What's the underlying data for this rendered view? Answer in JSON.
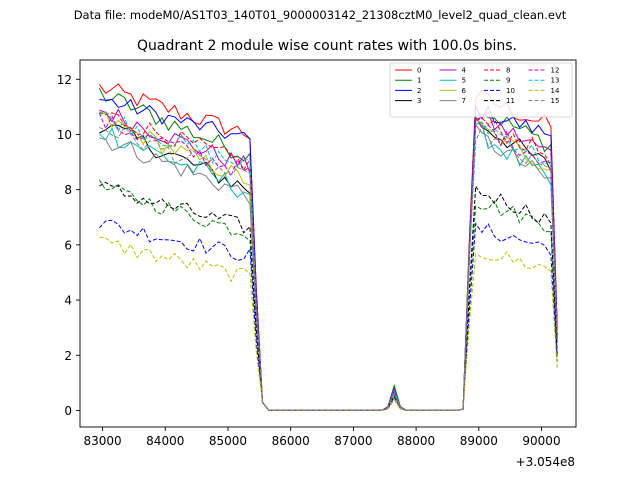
{
  "chart_data": {
    "type": "line",
    "suptitle": "Data file: modeM0/AS1T03_140T01_9000003142_21308cztM0_level2_quad_clean.evt",
    "title": "Quadrant 2 module wise count rates with 100.0s bins.",
    "xlabel": "",
    "ylabel": "",
    "x_offset_label": "+3.054e8",
    "xlim": [
      82640,
      90550
    ],
    "ylim": [
      -0.6,
      12.7
    ],
    "xticks": [
      83000,
      84000,
      85000,
      86000,
      87000,
      88000,
      89000,
      90000
    ],
    "yticks": [
      0,
      2,
      4,
      6,
      8,
      10,
      12
    ],
    "legend_location": "top-right",
    "series": [
      {
        "name": "0",
        "color": "#ff0000",
        "dash": "solid",
        "start": 11.7,
        "end": 10.0,
        "peak": 0.7,
        "start2": 11.4,
        "end2": 10.3,
        "noise": 0.35
      },
      {
        "name": "1",
        "color": "#008000",
        "dash": "solid",
        "start": 11.5,
        "end": 9.2,
        "peak": 0.9,
        "start2": 11.0,
        "end2": 9.6,
        "noise": 0.35
      },
      {
        "name": "2",
        "color": "#0000ff",
        "dash": "solid",
        "start": 11.3,
        "end": 9.8,
        "peak": 0.8,
        "start2": 10.9,
        "end2": 10.0,
        "noise": 0.3
      },
      {
        "name": "3",
        "color": "#000000",
        "dash": "solid",
        "start": 10.4,
        "end": 8.0,
        "peak": 0.6,
        "start2": 10.5,
        "end2": 8.8,
        "noise": 0.35
      },
      {
        "name": "4",
        "color": "#bf00bf",
        "dash": "solid",
        "start": 10.9,
        "end": 8.8,
        "peak": 0.8,
        "start2": 10.7,
        "end2": 9.3,
        "noise": 0.35
      },
      {
        "name": "5",
        "color": "#00bfbf",
        "dash": "solid",
        "start": 10.2,
        "end": 7.9,
        "peak": 0.6,
        "start2": 10.2,
        "end2": 8.2,
        "noise": 0.4
      },
      {
        "name": "6",
        "color": "#bfbf00",
        "dash": "solid",
        "start": 10.6,
        "end": 8.3,
        "peak": 0.6,
        "start2": 10.3,
        "end2": 8.8,
        "noise": 0.35
      },
      {
        "name": "7",
        "color": "#808080",
        "dash": "solid",
        "start": 9.9,
        "end": 7.8,
        "peak": 0.6,
        "start2": 10.0,
        "end2": 8.3,
        "noise": 0.35
      },
      {
        "name": "8",
        "color": "#ff0000",
        "dash": "dashed",
        "start": 10.8,
        "end": 8.9,
        "peak": 0.7,
        "start2": 10.6,
        "end2": 9.2,
        "noise": 0.35
      },
      {
        "name": "9",
        "color": "#008000",
        "dash": "dashed",
        "start": 8.1,
        "end": 6.4,
        "peak": 0.5,
        "start2": 7.6,
        "end2": 6.7,
        "noise": 0.3
      },
      {
        "name": "10",
        "color": "#0000ff",
        "dash": "dashed",
        "start": 6.8,
        "end": 5.6,
        "peak": 0.4,
        "start2": 6.6,
        "end2": 5.9,
        "noise": 0.3
      },
      {
        "name": "11",
        "color": "#000000",
        "dash": "dashed",
        "start": 8.1,
        "end": 6.6,
        "peak": 0.5,
        "start2": 8.0,
        "end2": 6.9,
        "noise": 0.3
      },
      {
        "name": "12",
        "color": "#bf00bf",
        "dash": "dashed",
        "start": 10.5,
        "end": 8.6,
        "peak": 0.7,
        "start2": 10.4,
        "end2": 9.0,
        "noise": 0.35
      },
      {
        "name": "13",
        "color": "#00bfbf",
        "dash": "dashed",
        "start": 10.7,
        "end": 8.8,
        "peak": 0.7,
        "start2": 10.5,
        "end2": 9.0,
        "noise": 0.35
      },
      {
        "name": "14",
        "color": "#bfbf00",
        "dash": "dashed",
        "start": 6.1,
        "end": 4.8,
        "peak": 0.4,
        "start2": 5.8,
        "end2": 5.1,
        "noise": 0.3
      },
      {
        "name": "15",
        "color": "#808080",
        "dash": "dashed",
        "start": 10.3,
        "end": 8.3,
        "peak": 0.6,
        "start2": 10.1,
        "end2": 8.6,
        "noise": 0.35
      }
    ],
    "time_profile": {
      "t_start": 82950,
      "bin": 100,
      "n_bins": 74,
      "segment1_end_bin": 24,
      "drop_bin": 26,
      "gap_end_bin": 58,
      "spike_bin": 47,
      "segment2_start_bin": 60,
      "segment2_end_bin": 73
    }
  }
}
